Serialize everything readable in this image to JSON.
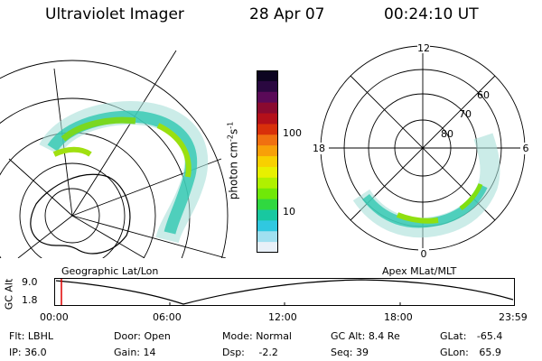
{
  "header": {
    "instrument": "Ultraviolet Imager",
    "date": "28 Apr 07",
    "time": "00:24:10 UT"
  },
  "colorbar": {
    "unit_label": "photon cm",
    "unit_sup1": "-2",
    "unit_s": "s",
    "unit_sup2": "-1",
    "tick_100": "100",
    "tick_10": "10",
    "colors": [
      "#0c0420",
      "#2a0840",
      "#5a0a58",
      "#8a0a30",
      "#b4101a",
      "#d8300a",
      "#f07010",
      "#f8a008",
      "#f8d000",
      "#e8f000",
      "#b0f000",
      "#70e808",
      "#30d840",
      "#18c8a0",
      "#30c8e0",
      "#a0e0f0",
      "#e8f0f8"
    ]
  },
  "left_panel": {
    "title": "Geographic Lat/Lon"
  },
  "right_panel": {
    "title": "Apex MLat/MLT",
    "mlt_12": "12",
    "mlt_18": "18",
    "mlt_6": "6",
    "mlt_0": "0",
    "lat_60": "60",
    "lat_70": "70",
    "lat_80": "80"
  },
  "altitude_plot": {
    "ylabel": "GC Alt",
    "y_top": "9.0",
    "y_bottom": "1.8",
    "x_ticks": [
      "00:00",
      "06:00",
      "12:00",
      "18:00",
      "23:59"
    ],
    "marker_color": "#e00000"
  },
  "status": {
    "filter_label": "Flt:",
    "filter_value": "LBHL",
    "ip_label": "IP:",
    "ip_value": "36.0",
    "door_label": "Door:",
    "door_value": "Open",
    "gain_label": "Gain:",
    "gain_value": "14",
    "mode_label": "Mode:",
    "mode_value": "Normal",
    "dsp_label": "Dsp:",
    "dsp_value": "-2.2",
    "gcalt_label": "GC Alt:",
    "gcalt_value": "8.4 Re",
    "seq_label": "Seq:",
    "seq_value": "39",
    "glat_label": "GLat:",
    "glat_value": "-65.4",
    "glon_label": "GLon:",
    "glon_value": "65.9"
  }
}
